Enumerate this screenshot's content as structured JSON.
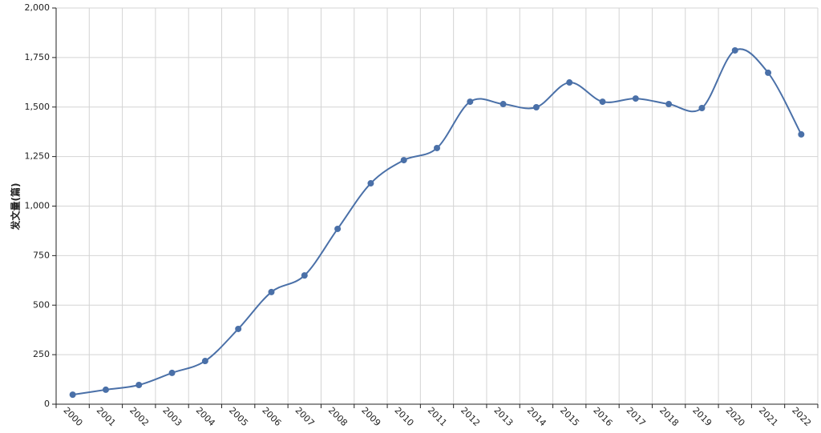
{
  "chart_data": {
    "type": "line",
    "y_label": "发文量(篇)",
    "categories": [
      "2000",
      "2001",
      "2002",
      "2003",
      "2004",
      "2005",
      "2006",
      "2007",
      "2008",
      "2009",
      "2010",
      "2011",
      "2012",
      "2013",
      "2014",
      "2015",
      "2016",
      "2017",
      "2018",
      "2019",
      "2020",
      "2021",
      "2022"
    ],
    "series": [
      {
        "color": "#4a70a8",
        "values": [
          48,
          73,
          97,
          158,
          218,
          380,
          566,
          650,
          885,
          1115,
          1232,
          1293,
          1527,
          1515,
          1499,
          1624,
          1527,
          1543,
          1515,
          1495,
          1786,
          1673,
          1362
        ]
      }
    ],
    "ylim": [
      0,
      2000
    ],
    "yticks": [
      0,
      250,
      500,
      750,
      {
        "value": 1000,
        "label": "1,000"
      },
      {
        "value": 1250,
        "label": "1,250"
      },
      {
        "value": 1500,
        "label": "1,500"
      },
      {
        "value": 1750,
        "label": "1,750"
      },
      {
        "value": 2000,
        "label": "2,000"
      }
    ],
    "grid": true
  }
}
